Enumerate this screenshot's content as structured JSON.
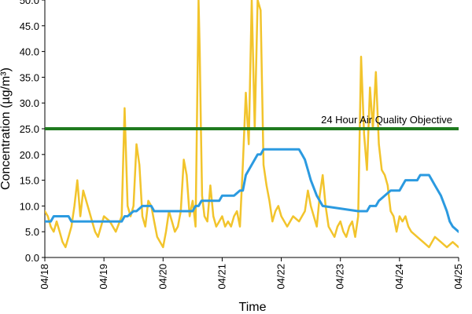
{
  "chart_data": {
    "type": "line",
    "xlabel": "Time",
    "ylabel": "Concentration (µg/m³)",
    "ylim": [
      0,
      50
    ],
    "yticks": [
      0,
      5,
      10,
      15,
      20,
      25,
      30,
      35,
      40,
      45,
      50
    ],
    "ytick_labels": [
      "0.0",
      "5.0",
      "10.0",
      "15.0",
      "20.0",
      "25.0",
      "30.0",
      "35.0",
      "40.0",
      "45.0",
      "50.0"
    ],
    "xlim": [
      "04/18",
      "04/25"
    ],
    "xticks": [
      "04/18",
      "04/19",
      "04/20",
      "04/21",
      "04/22",
      "04/23",
      "04/24",
      "04/25"
    ],
    "grid": false,
    "colors": {
      "hourly": "#F2C42C",
      "average": "#2B9AE0",
      "objective": "#1F7A1F",
      "axis": "#000000"
    },
    "objective": {
      "label": "24 Hour Air Quality Objective",
      "value": 25
    },
    "series": [
      {
        "key": "hourly",
        "color": "#F2C42C",
        "x_days": [
          0,
          0.05,
          0.1,
          0.15,
          0.2,
          0.25,
          0.3,
          0.35,
          0.4,
          0.45,
          0.5,
          0.55,
          0.6,
          0.65,
          0.7,
          0.75,
          0.8,
          0.85,
          0.9,
          0.95,
          1.0,
          1.1,
          1.2,
          1.3,
          1.35,
          1.4,
          1.45,
          1.5,
          1.55,
          1.6,
          1.65,
          1.7,
          1.75,
          1.8,
          1.85,
          1.9,
          1.95,
          2.0,
          2.05,
          2.1,
          2.15,
          2.2,
          2.25,
          2.3,
          2.35,
          2.4,
          2.45,
          2.5,
          2.55,
          2.6,
          2.62,
          2.64,
          2.66,
          2.7,
          2.75,
          2.8,
          2.85,
          2.9,
          2.95,
          3.0,
          3.05,
          3.1,
          3.15,
          3.2,
          3.25,
          3.3,
          3.35,
          3.4,
          3.45,
          3.5,
          3.55,
          3.6,
          3.65,
          3.7,
          3.75,
          3.8,
          3.85,
          3.9,
          3.95,
          4.0,
          4.1,
          4.2,
          4.3,
          4.4,
          4.45,
          4.5,
          4.55,
          4.6,
          4.65,
          4.7,
          4.75,
          4.8,
          4.85,
          4.9,
          4.95,
          5.0,
          5.05,
          5.1,
          5.15,
          5.2,
          5.25,
          5.3,
          5.35,
          5.4,
          5.45,
          5.5,
          5.55,
          5.6,
          5.65,
          5.7,
          5.75,
          5.8,
          5.85,
          5.9,
          5.95,
          6.0,
          6.05,
          6.1,
          6.15,
          6.2,
          6.3,
          6.4,
          6.5,
          6.6,
          6.7,
          6.8,
          6.9,
          7.0
        ],
        "values": [
          9,
          8,
          6,
          5,
          7,
          5,
          3,
          2,
          4,
          6,
          10,
          15,
          8,
          13,
          11,
          9,
          7,
          5,
          4,
          6,
          8,
          7,
          5,
          8,
          29,
          10,
          8,
          10,
          22,
          18,
          8,
          6,
          11,
          10,
          7,
          4,
          3,
          2,
          5,
          9,
          7,
          5,
          6,
          9,
          19,
          16,
          8,
          11,
          6,
          50,
          40,
          25,
          12,
          8,
          7,
          14,
          8,
          6,
          7,
          8,
          6,
          7,
          6,
          8,
          9,
          6,
          18,
          32,
          22,
          50,
          25,
          50,
          48,
          18,
          14,
          11,
          7,
          9,
          10,
          8,
          6,
          8,
          7,
          9,
          13,
          10,
          8,
          6,
          12,
          16,
          10,
          6,
          5,
          4,
          6,
          7,
          5,
          4,
          6,
          7,
          4,
          8,
          39,
          24,
          17,
          33,
          25,
          36,
          22,
          17,
          16,
          14,
          9,
          8,
          5,
          8,
          7,
          8,
          6,
          5,
          4,
          3,
          2,
          4,
          3,
          2,
          3,
          2
        ]
      },
      {
        "key": "average",
        "color": "#2B9AE0",
        "x_days": [
          0,
          0.1,
          0.15,
          0.4,
          0.45,
          1.3,
          1.35,
          1.4,
          1.5,
          1.55,
          1.65,
          1.7,
          1.75,
          1.8,
          1.85,
          2.5,
          2.55,
          2.6,
          2.65,
          2.8,
          2.85,
          2.95,
          3.0,
          3.1,
          3.2,
          3.3,
          3.35,
          3.4,
          3.5,
          3.6,
          3.65,
          3.7,
          4.3,
          4.35,
          4.4,
          4.45,
          4.5,
          4.6,
          4.7,
          5.3,
          5.35,
          5.45,
          5.5,
          5.6,
          5.65,
          5.75,
          5.85,
          6.0,
          6.05,
          6.1,
          6.3,
          6.35,
          6.5,
          6.55,
          6.6,
          6.7,
          6.8,
          6.85,
          6.9,
          7.0
        ],
        "values": [
          7,
          7,
          8,
          8,
          7,
          7,
          8,
          8,
          9,
          9,
          10,
          10,
          10,
          10,
          9,
          9,
          10,
          10,
          11,
          11,
          11,
          11,
          12,
          12,
          12,
          13,
          13,
          16,
          18,
          20,
          20,
          21,
          21,
          20,
          19,
          17,
          15,
          12,
          10,
          9,
          9,
          9,
          10,
          10,
          11,
          12,
          13,
          13,
          14,
          15,
          15,
          16,
          16,
          15,
          14,
          12,
          9,
          7,
          6,
          5
        ]
      }
    ]
  }
}
